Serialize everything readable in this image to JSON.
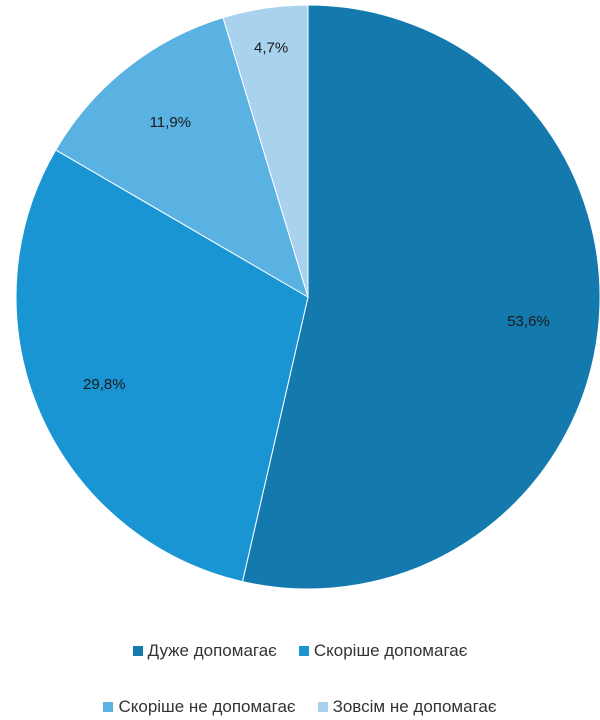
{
  "chart_data": {
    "type": "pie",
    "title": "",
    "slices": [
      {
        "label": "Дуже допомагає",
        "value": 53.6,
        "value_label": "53,6%",
        "color": "#1479ad"
      },
      {
        "label": "Скоріше допомагає",
        "value": 29.8,
        "value_label": "29,8%",
        "color": "#1a95d4"
      },
      {
        "label": "Скоріше не допомагає",
        "value": 11.9,
        "value_label": "11,9%",
        "color": "#5ab2e2"
      },
      {
        "label": "Зовсім не допомагає",
        "value": 4.7,
        "value_label": "4,7%",
        "color": "#a9d2ee"
      }
    ],
    "start": "12 o'clock",
    "direction": "clockwise",
    "legend_position": "bottom"
  }
}
